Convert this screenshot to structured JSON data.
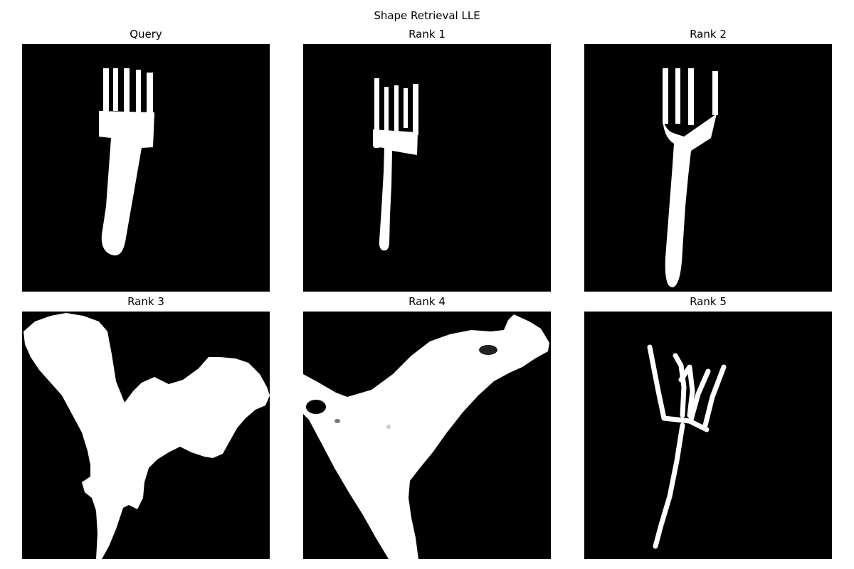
{
  "figure": {
    "title": "Shape Retrieval LLE"
  },
  "panels": [
    {
      "title": "Query",
      "shape": "fork-icon"
    },
    {
      "title": "Rank 1",
      "shape": "fork-icon"
    },
    {
      "title": "Rank 2",
      "shape": "fork-icon"
    },
    {
      "title": "Rank 3",
      "shape": "bat-icon"
    },
    {
      "title": "Rank 4",
      "shape": "bird-icon"
    },
    {
      "title": "Rank 5",
      "shape": "fork-icon"
    }
  ],
  "colors": {
    "background": "#000000",
    "shape": "#ffffff"
  }
}
